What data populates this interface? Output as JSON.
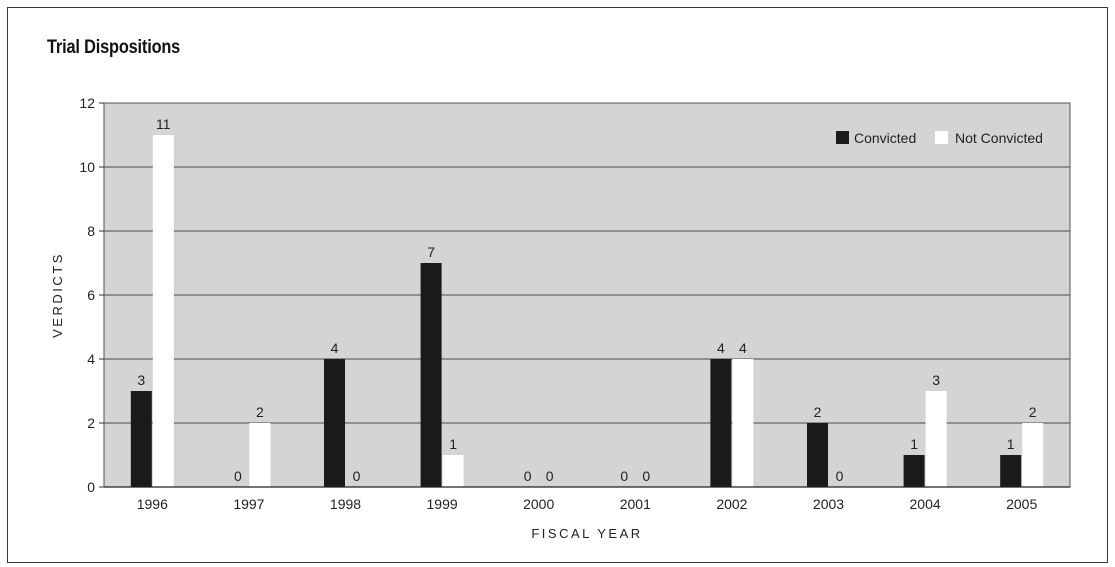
{
  "chart_data": {
    "type": "bar",
    "title": "Trial Dispositions",
    "xlabel": "FISCAL YEAR",
    "ylabel": "VERDICTS",
    "categories": [
      "1996",
      "1997",
      "1998",
      "1999",
      "2000",
      "2001",
      "2002",
      "2003",
      "2004",
      "2005"
    ],
    "series": [
      {
        "name": "Convicted",
        "values": [
          3,
          0,
          4,
          7,
          0,
          0,
          4,
          2,
          1,
          1
        ]
      },
      {
        "name": "Not Convicted",
        "values": [
          11,
          2,
          0,
          1,
          0,
          0,
          4,
          0,
          3,
          2
        ]
      }
    ],
    "ylim": [
      0,
      12
    ],
    "yticks": [
      0,
      2,
      4,
      6,
      8,
      10,
      12
    ],
    "grid": true,
    "legend_position": "top-right",
    "colors": {
      "plot_background": "#d3d4d6",
      "convicted": "#1a1a1a",
      "not_convicted": "#ffffff"
    }
  }
}
